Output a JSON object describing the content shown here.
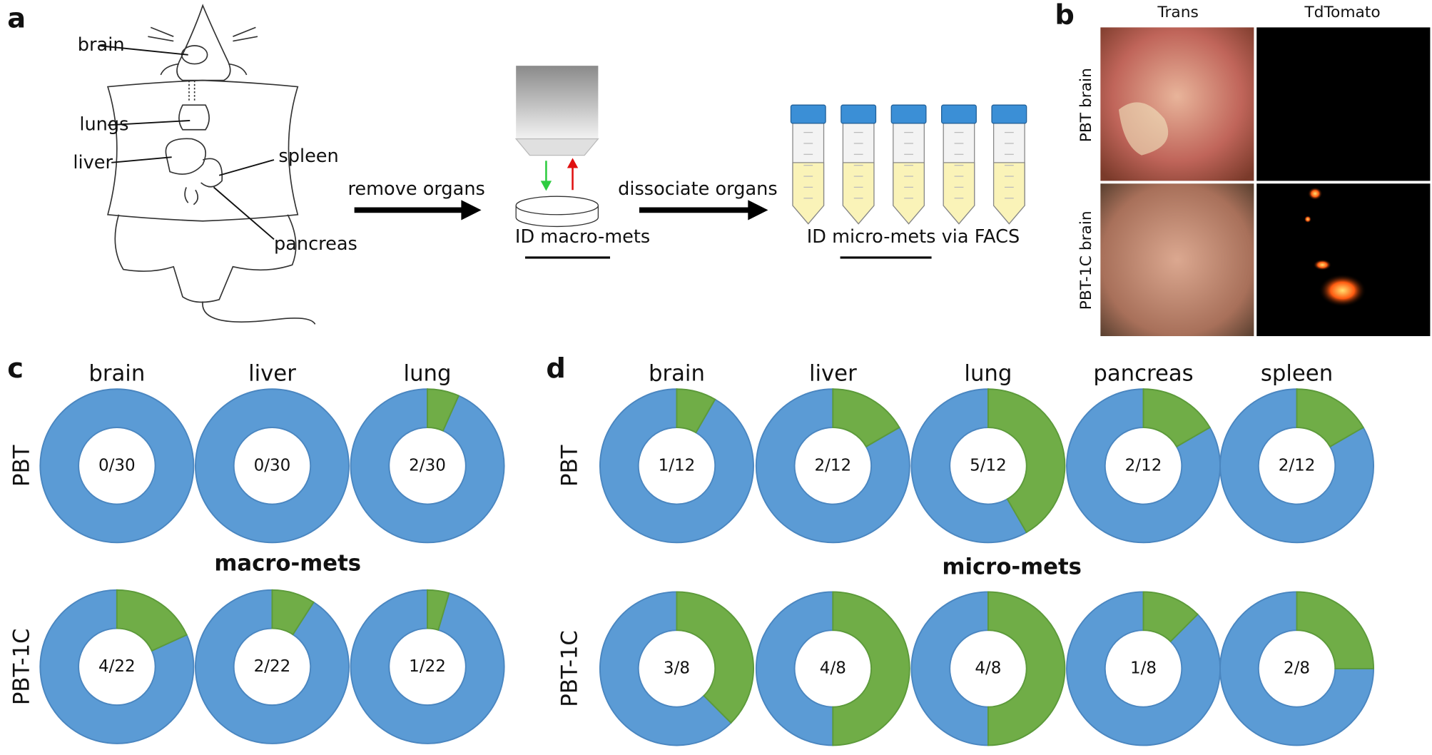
{
  "panel_labels": [
    "a",
    "b",
    "c",
    "d"
  ],
  "panel_a": {
    "organs": [
      "brain",
      "lungs",
      "liver",
      "spleen",
      "pancreas"
    ],
    "steps": [
      "remove organs",
      "dissociate organs"
    ],
    "captions": [
      {
        "prefix": "ID",
        "underlined": "macro-mets"
      },
      {
        "prefix": "ID",
        "underlined": "micro-mets",
        "suffix": "via FACS"
      }
    ]
  },
  "panel_b": {
    "columns": [
      "Trans",
      "TdTomato"
    ],
    "rows": [
      "PBT brain",
      "PBT-1C brain"
    ]
  },
  "chart_data": [
    {
      "type": "donut",
      "title": "macro-mets",
      "columns": [
        "brain",
        "liver",
        "lung"
      ],
      "rows": [
        "PBT",
        "PBT-1C"
      ],
      "values": [
        [
          0,
          0,
          2
        ],
        [
          4,
          2,
          1
        ]
      ],
      "totals": [
        [
          30,
          30,
          30
        ],
        [
          22,
          22,
          22
        ]
      ],
      "value_labels": [
        [
          "0/30",
          "0/30",
          "2/30"
        ],
        [
          "4/22",
          "2/22",
          "1/22"
        ]
      ],
      "colors": [
        "#70ad47",
        "#5b9bd5"
      ]
    },
    {
      "type": "donut",
      "title": "micro-mets",
      "columns": [
        "brain",
        "liver",
        "lung",
        "pancreas",
        "spleen"
      ],
      "rows": [
        "PBT",
        "PBT-1C"
      ],
      "values": [
        [
          1,
          2,
          5,
          2,
          2
        ],
        [
          3,
          4,
          4,
          1,
          2
        ]
      ],
      "totals": [
        [
          12,
          12,
          12,
          12,
          12
        ],
        [
          8,
          8,
          8,
          8,
          8
        ]
      ],
      "value_labels": [
        [
          "1/12",
          "2/12",
          "5/12",
          "2/12",
          "2/12"
        ],
        [
          "3/8",
          "4/8",
          "4/8",
          "1/8",
          "2/8"
        ]
      ],
      "colors": [
        "#70ad47",
        "#5b9bd5"
      ]
    }
  ]
}
